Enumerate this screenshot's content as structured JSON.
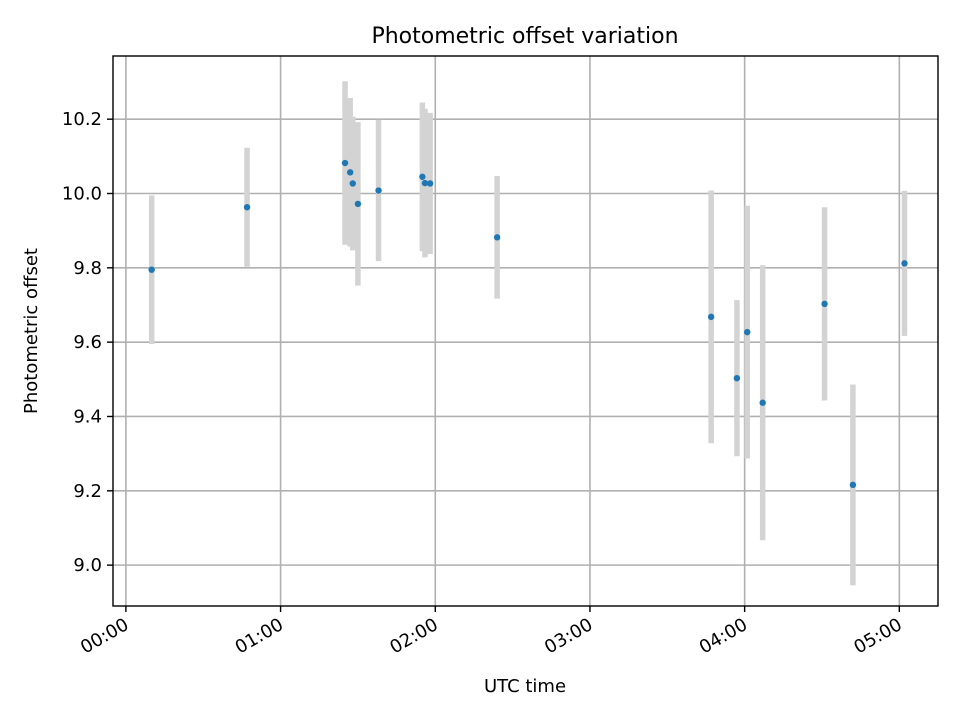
{
  "chart_data": {
    "type": "scatter",
    "title": "Photometric offset variation",
    "xlabel": "UTC time",
    "ylabel": "Photometric offset",
    "x_unit": "UTC time (HH:MM)",
    "xlim": [
      "23:55",
      "05:15"
    ],
    "ylim": [
      8.89,
      10.37
    ],
    "grid": true,
    "x_ticks": [
      "00:00",
      "01:00",
      "02:00",
      "03:00",
      "04:00",
      "05:00"
    ],
    "y_ticks": [
      "9.0",
      "9.2",
      "9.4",
      "9.6",
      "9.8",
      "10.0",
      "10.2"
    ],
    "marker_color": "#1f77b4",
    "errorbar_color": "#d3d3d3",
    "points": [
      {
        "time": "00:10",
        "value": 9.795,
        "error": 0.2
      },
      {
        "time": "00:47",
        "value": 9.963,
        "error": 0.16
      },
      {
        "time": "01:25",
        "value": 10.082,
        "error": 0.22
      },
      {
        "time": "01:27",
        "value": 10.057,
        "error": 0.2
      },
      {
        "time": "01:28",
        "value": 10.027,
        "error": 0.18
      },
      {
        "time": "01:30",
        "value": 9.972,
        "error": 0.22
      },
      {
        "time": "01:38",
        "value": 10.008,
        "error": 0.19
      },
      {
        "time": "01:55",
        "value": 10.045,
        "error": 0.2
      },
      {
        "time": "01:56",
        "value": 10.028,
        "error": 0.2
      },
      {
        "time": "01:58",
        "value": 10.027,
        "error": 0.19
      },
      {
        "time": "02:24",
        "value": 9.882,
        "error": 0.165
      },
      {
        "time": "03:47",
        "value": 9.668,
        "error": 0.34
      },
      {
        "time": "03:57",
        "value": 9.503,
        "error": 0.21
      },
      {
        "time": "04:01",
        "value": 9.627,
        "error": 0.34
      },
      {
        "time": "04:07",
        "value": 9.437,
        "error": 0.37
      },
      {
        "time": "04:31",
        "value": 9.703,
        "error": 0.26
      },
      {
        "time": "04:42",
        "value": 9.216,
        "error": 0.27
      },
      {
        "time": "05:02",
        "value": 9.812,
        "error": 0.195
      }
    ]
  }
}
